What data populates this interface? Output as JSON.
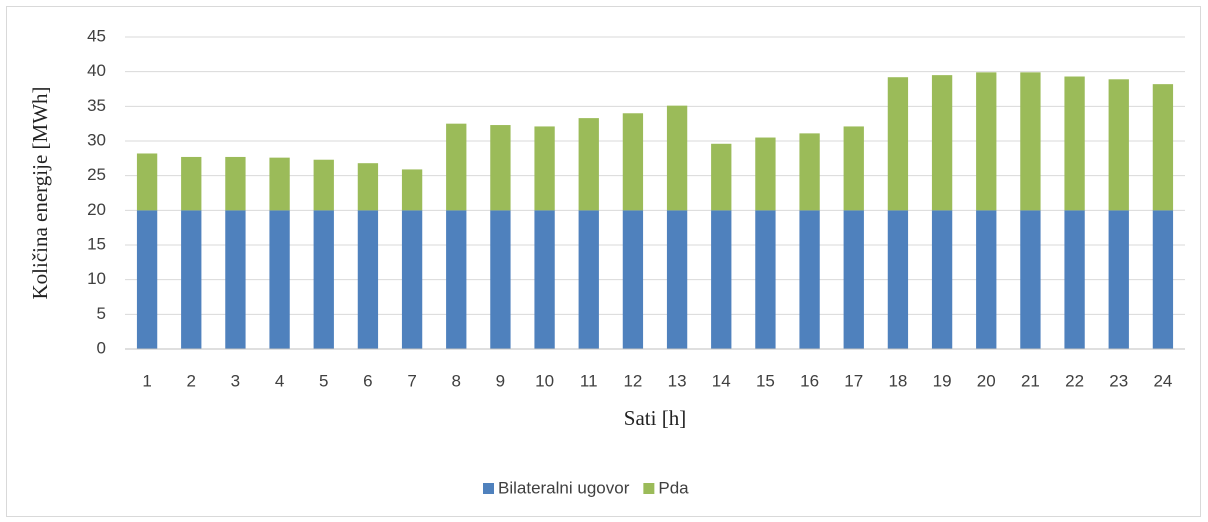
{
  "chart_data": {
    "type": "stacked_bar",
    "xlabel": "Sati [h]",
    "ylabel": "Količina energije [MWh]",
    "categories": [
      "1",
      "2",
      "3",
      "4",
      "5",
      "6",
      "7",
      "8",
      "9",
      "10",
      "11",
      "12",
      "13",
      "14",
      "15",
      "16",
      "17",
      "18",
      "19",
      "20",
      "21",
      "22",
      "23",
      "24"
    ],
    "series": [
      {
        "name": "Bilateralni ugovor",
        "color": "#4f81bd",
        "values": [
          20,
          20,
          20,
          20,
          20,
          20,
          20,
          20,
          20,
          20,
          20,
          20,
          20,
          20,
          20,
          20,
          20,
          20,
          20,
          20,
          20,
          20,
          20,
          20
        ]
      },
      {
        "name": "Pda",
        "color": "#9bbb59",
        "values": [
          8.2,
          7.7,
          7.7,
          7.6,
          7.3,
          6.8,
          5.9,
          12.5,
          12.3,
          12.1,
          13.3,
          14.0,
          15.1,
          9.6,
          10.5,
          11.1,
          12.1,
          19.2,
          19.5,
          19.9,
          19.9,
          19.3,
          18.9,
          18.2
        ]
      }
    ],
    "ylim": [
      0,
      45
    ],
    "yticks": [
      0,
      5,
      10,
      15,
      20,
      25,
      30,
      35,
      40,
      45
    ],
    "grid": true,
    "legend": "bottom"
  }
}
